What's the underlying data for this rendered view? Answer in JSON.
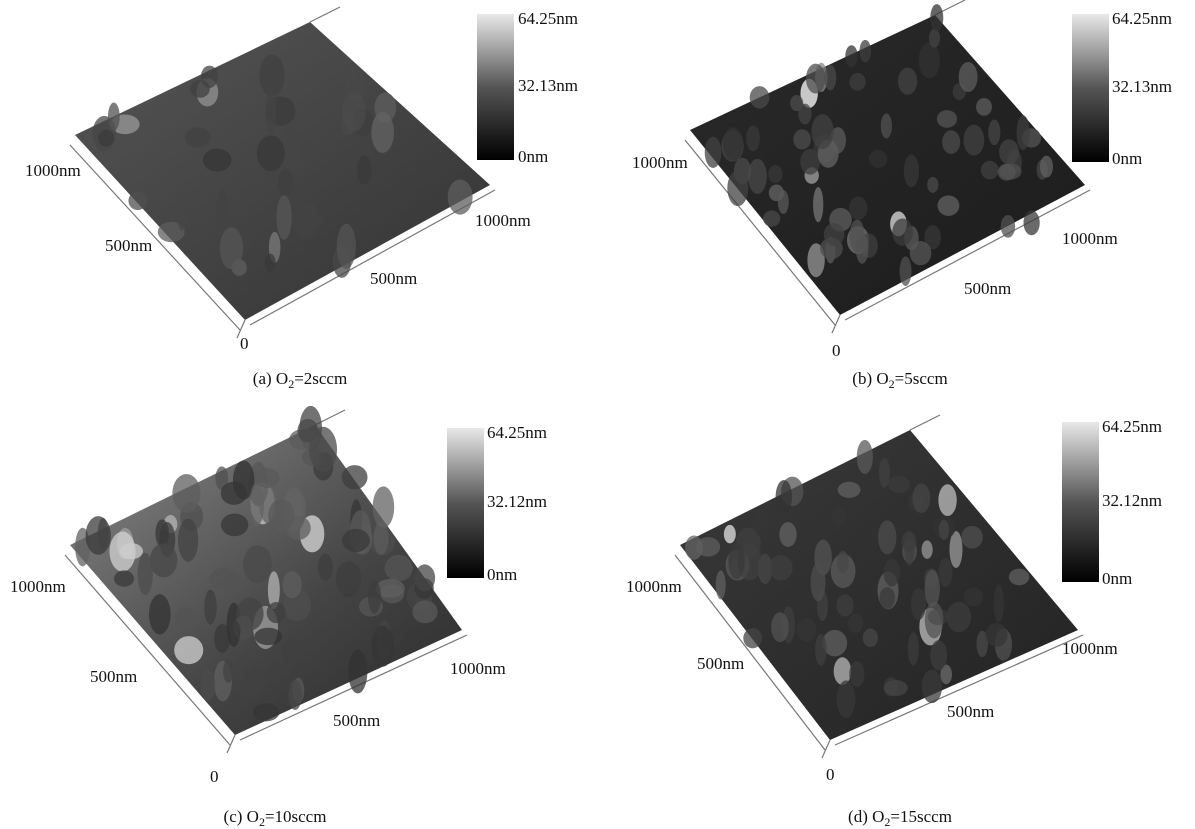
{
  "panels": [
    {
      "colorbar": [
        "64.25nm",
        "32.13nm",
        "0nm"
      ],
      "axis_labels": {
        "left": "1000nm",
        "left_mid": "500nm",
        "origin": "0",
        "right_mid": "500nm",
        "right": "1000nm"
      },
      "caption": {
        "prefix": "(a) O",
        "sub": "2",
        "suffix": "=2sccm"
      }
    },
    {
      "colorbar": [
        "64.25nm",
        "32.13nm",
        "0nm"
      ],
      "axis_labels": {
        "left": "1000nm",
        "origin": "0",
        "right_mid": "500nm",
        "right": "1000nm"
      },
      "caption": {
        "prefix": "(b) O",
        "sub": "2",
        "suffix": "=5sccm"
      }
    },
    {
      "colorbar": [
        "64.25nm",
        "32.12nm",
        "0nm"
      ],
      "axis_labels": {
        "left": "1000nm",
        "left_mid": "500nm",
        "origin": "0",
        "right_mid": "500nm",
        "right": "1000nm"
      },
      "caption": {
        "prefix": "(c) O",
        "sub": "2",
        "suffix": "=10sccm"
      }
    },
    {
      "colorbar": [
        "64.25nm",
        "32.12nm",
        "0nm"
      ],
      "axis_labels": {
        "left": "1000nm",
        "left_mid": "500nm",
        "origin": "0",
        "right_mid": "500nm",
        "right": "1000nm"
      },
      "caption": {
        "prefix": "(d) O",
        "sub": "2",
        "suffix": "=15sccm"
      }
    }
  ]
}
